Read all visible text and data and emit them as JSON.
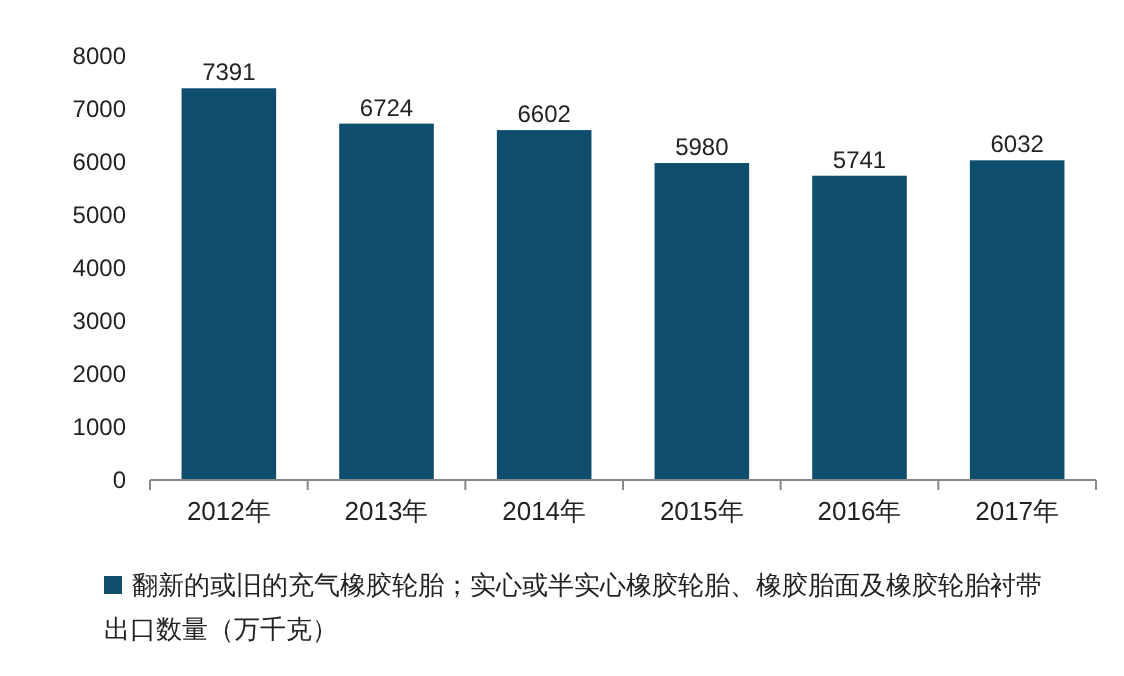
{
  "chart_data": {
    "type": "bar",
    "categories": [
      "2012年",
      "2013年",
      "2014年",
      "2015年",
      "2016年",
      "2017年"
    ],
    "series": [
      {
        "name": "翻新的或旧的充气橡胶轮胎；实心或半实心橡胶轮胎、橡胶胎面及橡胶轮胎衬带出口数量（万千克）",
        "color": "#0e4d6b",
        "values": [
          7391,
          6724,
          6602,
          5980,
          5741,
          6032
        ]
      }
    ],
    "ylim": [
      0,
      8000
    ],
    "yticks": [
      0,
      1000,
      2000,
      3000,
      4000,
      5000,
      6000,
      7000,
      8000
    ],
    "data_labels": true,
    "legend": "bottom"
  }
}
